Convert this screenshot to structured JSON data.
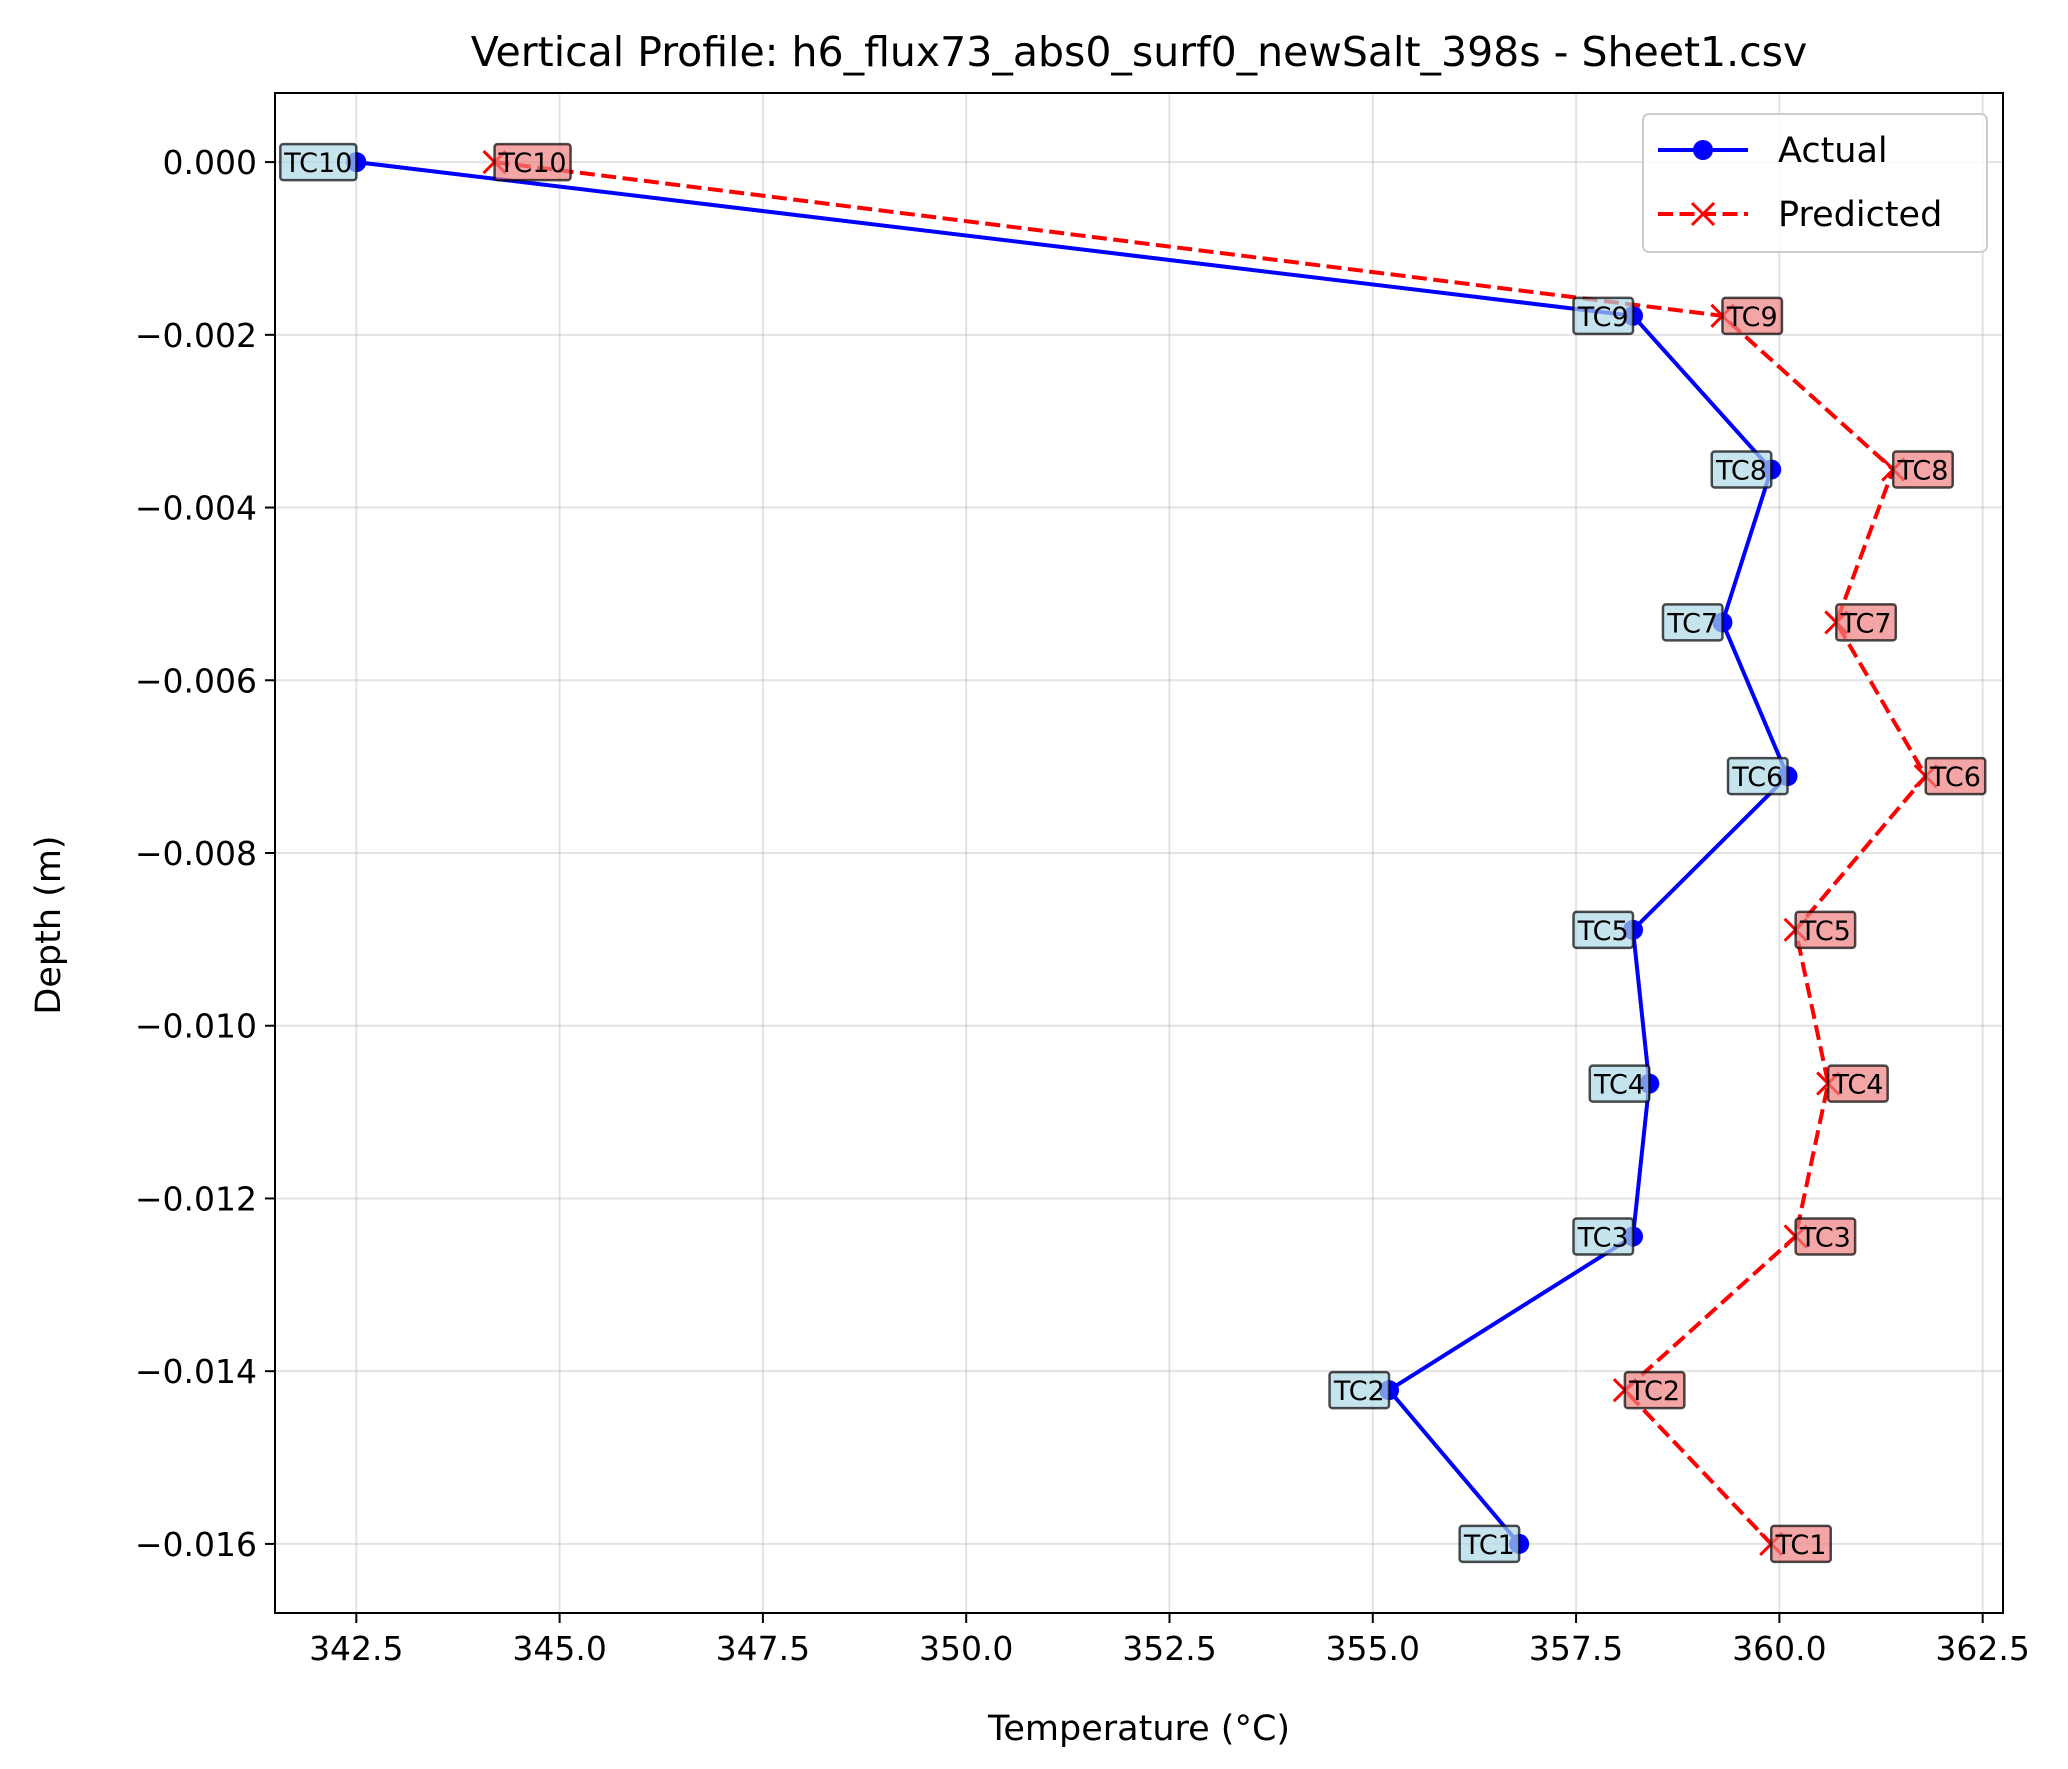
{
  "chart_data": {
    "type": "line",
    "title": "Vertical Profile: h6_flux73_abs0_surf0_newSalt_398s - Sheet1.csv",
    "xlabel": "Temperature (°C)",
    "ylabel": "Depth (m)",
    "xlim": [
      341.5,
      362.75
    ],
    "ylim": [
      -0.0168,
      0.0008
    ],
    "xticks": [
      342.5,
      345.0,
      347.5,
      350.0,
      352.5,
      355.0,
      357.5,
      360.0,
      362.5
    ],
    "xtick_labels": [
      "342.5",
      "345.0",
      "347.5",
      "350.0",
      "352.5",
      "355.0",
      "357.5",
      "360.0",
      "362.5"
    ],
    "yticks": [
      0.0,
      -0.002,
      -0.004,
      -0.006,
      -0.008,
      -0.01,
      -0.012,
      -0.014,
      -0.016
    ],
    "ytick_labels": [
      "0.000",
      "−0.002",
      "−0.004",
      "−0.006",
      "−0.008",
      "−0.010",
      "−0.012",
      "−0.014",
      "−0.016"
    ],
    "grid": true,
    "legend_position": "top-right",
    "depth": [
      0.0,
      -0.00178,
      -0.00356,
      -0.00533,
      -0.00711,
      -0.00889,
      -0.01067,
      -0.01244,
      -0.01422,
      -0.016
    ],
    "point_labels": [
      "TC10",
      "TC9",
      "TC8",
      "TC7",
      "TC6",
      "TC5",
      "TC4",
      "TC3",
      "TC2",
      "TC1"
    ],
    "series": [
      {
        "name": "Actual",
        "color": "#0000ff",
        "marker": "circle",
        "line_style": "solid",
        "label_bg": "#add8e6",
        "values": [
          342.5,
          358.2,
          359.9,
          359.3,
          360.1,
          358.2,
          358.4,
          358.2,
          355.2,
          356.8
        ]
      },
      {
        "name": "Predicted",
        "color": "#ff0000",
        "marker": "x",
        "line_style": "dashed",
        "label_bg": "#f08080",
        "values": [
          344.2,
          359.3,
          361.4,
          360.7,
          361.8,
          360.2,
          360.6,
          360.2,
          358.1,
          359.9
        ]
      }
    ]
  }
}
